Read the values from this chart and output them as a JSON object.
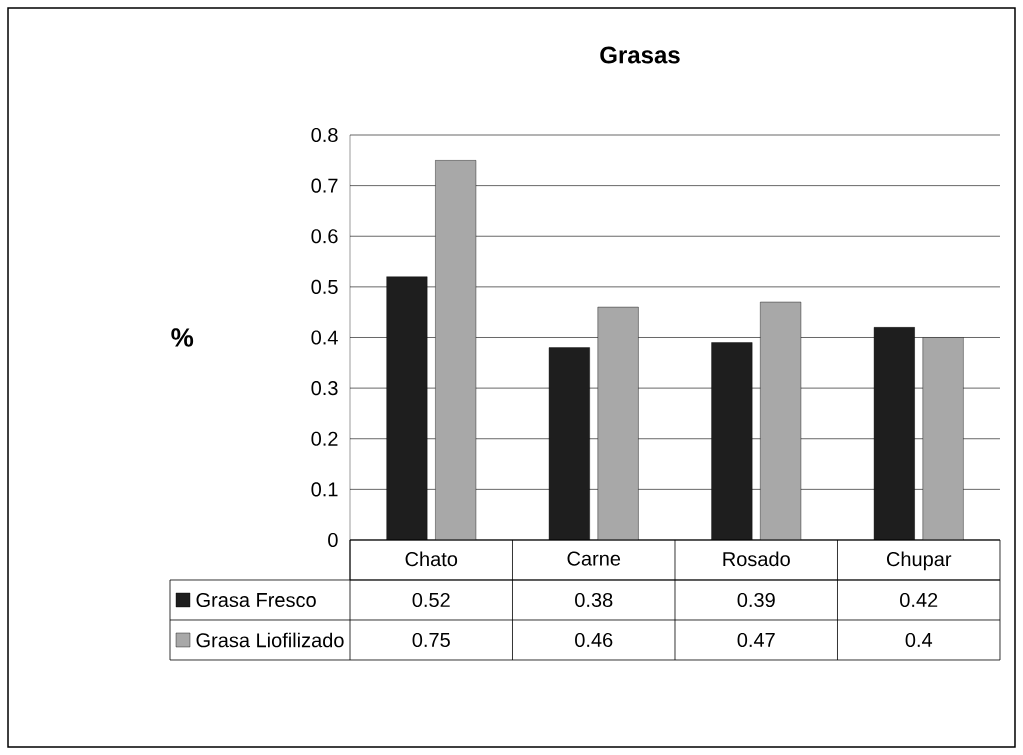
{
  "chart_data": {
    "type": "bar",
    "title": "Grasas",
    "ylabel": "%",
    "categories": [
      "Chato",
      "Carne",
      "Rosado",
      "Chupar"
    ],
    "series": [
      {
        "name": "Grasa Fresco",
        "color": "#1e1e1e",
        "values": [
          0.52,
          0.38,
          0.39,
          0.42
        ]
      },
      {
        "name": "Grasa Liofilizado",
        "color": "#a8a8a8",
        "values": [
          0.75,
          0.46,
          0.47,
          0.4
        ]
      }
    ],
    "ylim": [
      0,
      0.8
    ],
    "yticks": [
      0,
      0.1,
      0.2,
      0.3,
      0.4,
      0.5,
      0.6,
      0.7,
      0.8
    ],
    "grid": "y",
    "legend": "bottom",
    "data_labels": true
  }
}
